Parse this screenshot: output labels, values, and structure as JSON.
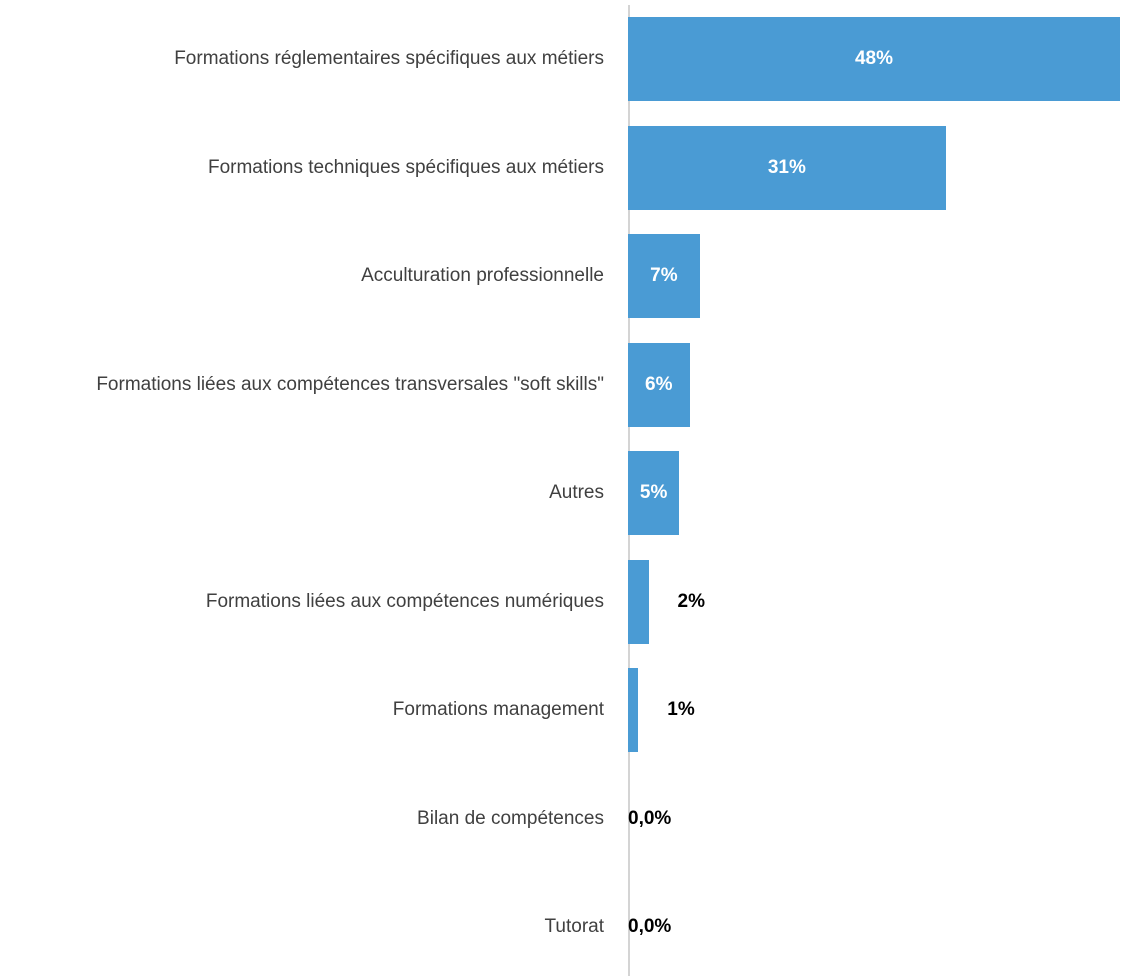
{
  "chart_data": {
    "type": "bar",
    "orientation": "horizontal",
    "categories": [
      "Formations réglementaires spécifiques aux métiers",
      "Formations techniques spécifiques aux métiers",
      "Acculturation professionnelle",
      "Formations liées aux compétences transversales \"soft skills\"",
      "Autres",
      "Formations liées aux compétences numériques",
      "Formations management",
      "Bilan de compétences",
      "Tutorat"
    ],
    "values": [
      48,
      31,
      7,
      6,
      5,
      2,
      1,
      0,
      0
    ],
    "value_labels": [
      "48%",
      "31%",
      "7%",
      "6%",
      "5%",
      "2%",
      "1%",
      "0,0%",
      "0,0%"
    ],
    "color": "#4a9bd4"
  }
}
